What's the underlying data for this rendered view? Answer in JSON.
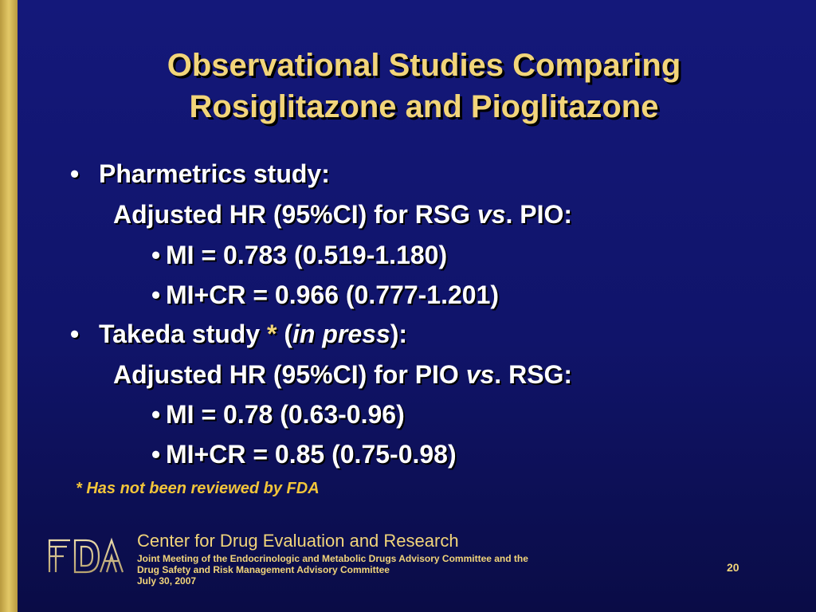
{
  "colors": {
    "background": "#14187a",
    "accent": "#f2d57a",
    "text": "#ffffff",
    "footnote": "#f2c53a",
    "side_bar": "#d8bb58"
  },
  "slide": {
    "title_line1": "Observational Studies Comparing",
    "title_line2": "Rosiglitazone and Pioglitazone"
  },
  "body": {
    "bullet1": {
      "bullet": "•",
      "label": "Pharmetrics study:",
      "subhead_prefix": "Adjusted HR (95%CI) for RSG ",
      "subhead_italic": "vs",
      "subhead_suffix": ". PIO:",
      "items": [
        {
          "bullet": "•",
          "text": "MI = 0.783 (0.519-1.180)"
        },
        {
          "bullet": "•",
          "text": "MI+CR = 0.966 (0.777-1.201)"
        }
      ]
    },
    "bullet2": {
      "bullet": "•",
      "label_prefix": "Takeda study ",
      "asterisk": "*",
      "paren_open": " (",
      "label_italic": "in press",
      "label_suffix": "):",
      "subhead_prefix": "Adjusted HR (95%CI) for PIO ",
      "subhead_italic": "vs",
      "subhead_suffix": ". RSG:",
      "items": [
        {
          "bullet": "•",
          "text": "MI = 0.78 (0.63-0.96)"
        },
        {
          "bullet": "•",
          "text": "MI+CR = 0.85 (0.75-0.98)"
        }
      ]
    },
    "footnote": "* Has not been reviewed by FDA"
  },
  "footer": {
    "logo_text": "FDA",
    "logo_icon": "fda-logo-icon",
    "org": "Center for Drug Evaluation and Research",
    "meeting_line1": "Joint Meeting of the Endocrinologic and Metabolic Drugs Advisory Committee and the",
    "meeting_line2": "Drug Safety and Risk Management Advisory Committee",
    "date": "July 30, 2007",
    "page_number": "20"
  }
}
